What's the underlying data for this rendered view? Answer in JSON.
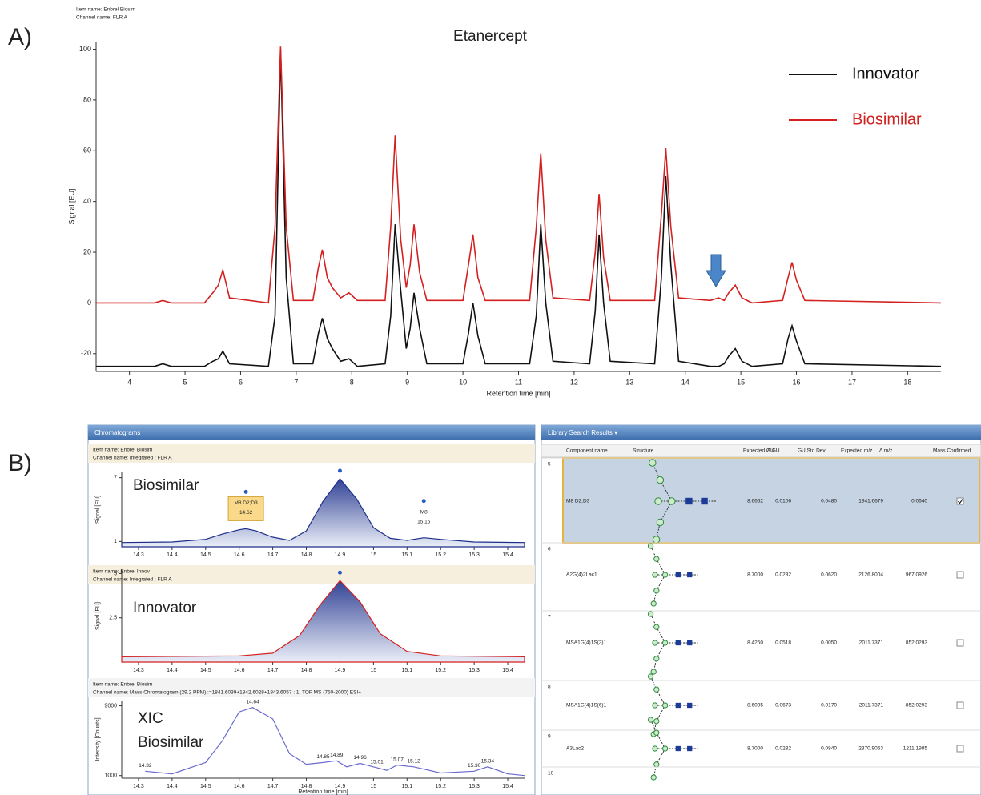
{
  "label_a": "A)",
  "label_b": "B)",
  "chart_data": [
    {
      "type": "line",
      "title": "Etanercept",
      "annotations": [
        "Item name: Enbrel Biosim",
        "Channel name: FLR A"
      ],
      "xlabel": "Retention time [min]",
      "ylabel": "Signal [EU]",
      "x": [
        3.4,
        4.45,
        4.6,
        4.75,
        5.35,
        5.5,
        5.6,
        5.68,
        5.8,
        6.5,
        6.62,
        6.72,
        6.82,
        6.95,
        7.3,
        7.4,
        7.47,
        7.56,
        7.65,
        7.8,
        7.95,
        8.1,
        8.6,
        8.7,
        8.78,
        8.88,
        8.98,
        9.05,
        9.12,
        9.22,
        9.35,
        10.0,
        10.1,
        10.18,
        10.27,
        10.4,
        11.2,
        11.32,
        11.4,
        11.49,
        11.62,
        12.28,
        12.38,
        12.45,
        12.53,
        12.65,
        13.45,
        13.57,
        13.65,
        13.74,
        13.88,
        14.45,
        14.6,
        14.7,
        14.78,
        14.9,
        15.02,
        15.2,
        15.75,
        15.85,
        15.92,
        16.0,
        16.15,
        18.6
      ],
      "series": [
        {
          "name": "Innovator",
          "color": "#111111",
          "values": [
            -25,
            -25,
            -24,
            -25,
            -25,
            -23,
            -22,
            -19,
            -24,
            -25,
            -5,
            100,
            10,
            -24,
            -24,
            -12,
            -6,
            -14,
            -18,
            -23,
            -22,
            -25,
            -24,
            -5,
            31,
            5,
            -18,
            -10,
            4,
            -10,
            -24,
            -24,
            -12,
            0,
            -13,
            -24,
            -24,
            -5,
            31,
            0,
            -23,
            -24,
            -3,
            27,
            0,
            -23,
            -24,
            10,
            50,
            15,
            -23,
            -25,
            -25,
            -24,
            -21,
            -18,
            -23,
            -25,
            -24,
            -14,
            -9,
            -15,
            -24,
            -25
          ]
        },
        {
          "name": "Biosimilar",
          "color": "#d42020",
          "values": [
            0,
            0,
            1,
            0,
            0,
            4,
            7,
            13,
            2,
            0,
            30,
            101,
            30,
            1,
            1,
            14,
            21,
            10,
            6,
            2,
            4,
            1,
            1,
            30,
            66,
            25,
            6,
            15,
            31,
            12,
            1,
            1,
            15,
            27,
            10,
            1,
            1,
            30,
            59,
            25,
            2,
            1,
            20,
            43,
            18,
            1,
            1,
            35,
            61,
            30,
            2,
            1,
            2,
            1,
            4,
            7,
            2,
            0,
            1,
            10,
            16,
            9,
            1,
            0
          ]
        }
      ],
      "xlim": [
        3.4,
        18.6
      ],
      "ylim": [
        -27,
        103
      ],
      "xticks": [
        4,
        5,
        6,
        7,
        8,
        9,
        10,
        11,
        12,
        13,
        14,
        15,
        16,
        17,
        18
      ],
      "yticks": [
        -20,
        0,
        20,
        40,
        60,
        80,
        100
      ],
      "legend": "upper right"
    },
    {
      "type": "area",
      "overlay": "Biosimilar",
      "ylabel": "Signal [EU]",
      "x": [
        14.25,
        14.4,
        14.5,
        14.55,
        14.6,
        14.62,
        14.65,
        14.7,
        14.75,
        14.8,
        14.85,
        14.9,
        14.95,
        15.0,
        15.05,
        15.1,
        15.15,
        15.2,
        15.3,
        15.45
      ],
      "series": [
        {
          "color": "#1c2f8a",
          "values": [
            0.9,
            0.95,
            1.2,
            1.7,
            2.1,
            2.2,
            2.0,
            1.4,
            1.1,
            2.0,
            4.8,
            6.9,
            5.0,
            2.3,
            1.3,
            1.1,
            1.35,
            1.2,
            0.95,
            0.9
          ]
        }
      ],
      "peak_labels": [
        {
          "name": "M8 D2;D3",
          "x": 14.62
        },
        {
          "name": "M8",
          "x": 15.15
        }
      ],
      "xlim": [
        14.25,
        15.45
      ],
      "ylim": [
        0.5,
        7.5
      ],
      "xticks": [
        14.3,
        14.4,
        14.5,
        14.6,
        14.7,
        14.8,
        14.9,
        15,
        15.1,
        15.2,
        15.3,
        15.4
      ],
      "yticks": [
        1,
        7
      ]
    },
    {
      "type": "area",
      "overlay": "Innovator",
      "ylabel": "Signal [EU]",
      "x": [
        14.25,
        14.6,
        14.7,
        14.78,
        14.84,
        14.9,
        14.96,
        15.02,
        15.1,
        15.2,
        15.45
      ],
      "series": [
        {
          "color": "#d42020",
          "values": [
            0.3,
            0.35,
            0.5,
            1.5,
            3.2,
            4.6,
            3.4,
            1.6,
            0.6,
            0.35,
            0.3
          ]
        }
      ],
      "xlim": [
        14.25,
        15.45
      ],
      "ylim": [
        0,
        5.2
      ],
      "xticks": [
        14.3,
        14.4,
        14.5,
        14.6,
        14.7,
        14.8,
        14.9,
        15,
        15.1,
        15.2,
        15.3,
        15.4
      ],
      "yticks": [
        2.5,
        5
      ]
    },
    {
      "type": "line",
      "overlay": "XIC",
      "overlay2": "Biosimilar",
      "ylabel": "Intensity [Counts]",
      "xlabel": "Retention time [min]",
      "x": [
        14.32,
        14.4,
        14.5,
        14.55,
        14.6,
        14.64,
        14.7,
        14.75,
        14.8,
        14.85,
        14.89,
        14.92,
        14.96,
        15.01,
        15.04,
        15.07,
        15.12,
        15.2,
        15.3,
        15.34,
        15.4,
        15.45
      ],
      "series": [
        {
          "color": "#6a6ad0",
          "values": [
            1500,
            1200,
            2500,
            5000,
            8300,
            8800,
            7500,
            3500,
            2300,
            2500,
            2700,
            2000,
            2400,
            1900,
            1600,
            2200,
            2000,
            1300,
            1500,
            2000,
            1200,
            1000
          ]
        }
      ],
      "point_labels": [
        "14.32",
        null,
        null,
        null,
        null,
        "14.64",
        null,
        null,
        null,
        "14.85",
        "14.89",
        null,
        "14.96",
        "15.01",
        null,
        "15.07",
        "15.12",
        null,
        "15.30",
        "15.34",
        null,
        null
      ],
      "xlim": [
        14.25,
        15.45
      ],
      "ylim": [
        700,
        9600
      ],
      "xticks": [
        14.3,
        14.4,
        14.5,
        14.6,
        14.7,
        14.8,
        14.9,
        15,
        15.1,
        15.2,
        15.3,
        15.4
      ],
      "yticks": [
        1000,
        9000
      ]
    }
  ],
  "chromatograms_window": {
    "title": "Chromatograms",
    "panes": [
      {
        "item": "Item name: Enbrel Biosim",
        "channel": "Channel name: Integrated : FLR A"
      },
      {
        "item": "Item name: Enbrel Innov",
        "channel": "Channel name: Integrated : FLR A"
      },
      {
        "item": "Item name: Enbrel Biosim",
        "channel": "Channel name: Mass Chromatogram (29.2 PPM) :=1841.6039+1842.6028+1843.6057 : 1: TOF MS (750-2000) ESI+"
      }
    ]
  },
  "library_window": {
    "title": "Library Search Results ▾",
    "columns": [
      "Component name",
      "Structure",
      "Expected GU",
      "Δ GU",
      "GU Std Dev",
      "Expected m/z",
      "Δ m/z",
      "Mass Confirmed"
    ],
    "rows": [
      {
        "index": "5",
        "component": "M8 D2;D3",
        "expected_gu": "8.6662",
        "delta_gu": "0.0106",
        "gu_std": "0.0480",
        "expected_mz": "1841.6679",
        "delta_mz": "0.0640",
        "mass_confirmed": true
      },
      {
        "index": "6",
        "component": "A2G(4)2Lac1",
        "expected_gu": "8.7000",
        "delta_gu": "0.0232",
        "gu_std": "0.0620",
        "expected_mz": "2126.8004",
        "delta_mz": "967.0926",
        "mass_confirmed": false
      },
      {
        "index": "7",
        "component": "MSA1G(4)1S(3)1",
        "expected_gu": "8.4250",
        "delta_gu": "0.0518",
        "gu_std": "0.0050",
        "expected_mz": "2011.7371",
        "delta_mz": "852.0293",
        "mass_confirmed": false
      },
      {
        "index": "8",
        "component": "MSA1G(4)1S(6)1",
        "expected_gu": "8.6095",
        "delta_gu": "0.0673",
        "gu_std": "0.0170",
        "expected_mz": "2011.7371",
        "delta_mz": "852.0293",
        "mass_confirmed": false
      },
      {
        "index": "9",
        "component": "A3Lac2",
        "expected_gu": "8.7000",
        "delta_gu": "0.0232",
        "gu_std": "0.0840",
        "expected_mz": "2370.9063",
        "delta_mz": "1211.1985",
        "mass_confirmed": false
      },
      {
        "index": "10"
      }
    ]
  }
}
